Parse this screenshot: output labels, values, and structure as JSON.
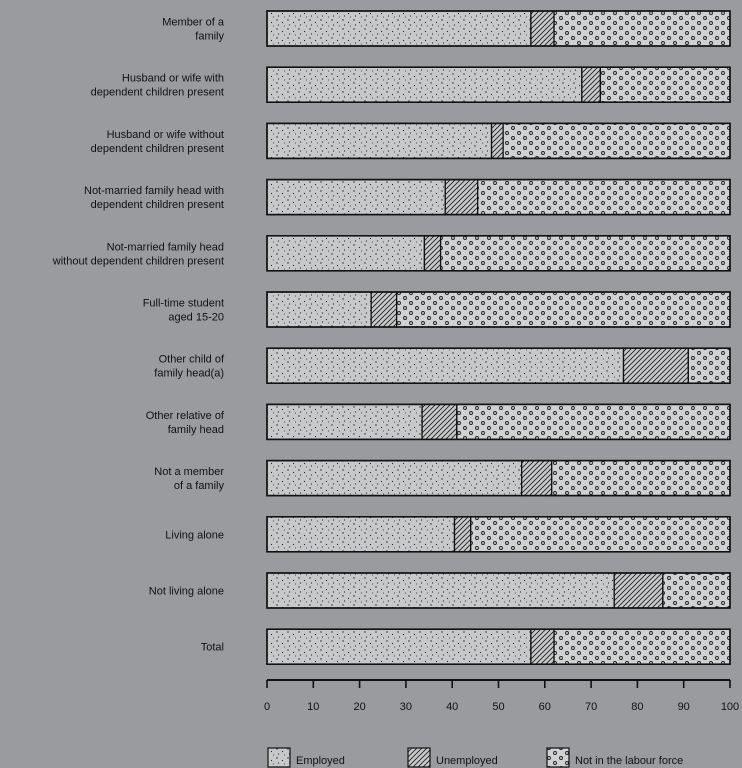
{
  "chart_data": {
    "type": "bar",
    "orientation": "horizontal",
    "stacked": true,
    "categories": [
      [
        "Member of a",
        "family"
      ],
      [
        "Husband or wife with",
        "dependent children present"
      ],
      [
        "Husband or wife without",
        "dependent children present"
      ],
      [
        "Not-married family head with",
        "dependent children present"
      ],
      [
        "Not-married family head",
        "without dependent children present"
      ],
      [
        "Full-time student",
        "aged 15-20"
      ],
      [
        "Other child of",
        "family head(a)"
      ],
      [
        "Other relative of",
        "family head"
      ],
      [
        "Not a member",
        "of a family"
      ],
      [
        "Living alone"
      ],
      [
        "Not living alone"
      ],
      [
        "Total"
      ]
    ],
    "series": [
      {
        "name": "Employed",
        "values": [
          57,
          68,
          48.5,
          38.5,
          34,
          22.5,
          77,
          33.5,
          55,
          40.5,
          75,
          57
        ]
      },
      {
        "name": "Unemployed",
        "values": [
          5,
          4,
          2.5,
          7,
          3.5,
          5.5,
          14,
          7.5,
          6.5,
          3.5,
          10.5,
          5
        ]
      },
      {
        "name": "Not in the labour force",
        "values": [
          38,
          28,
          49,
          54.5,
          62.5,
          72,
          9,
          59,
          38.5,
          56,
          14.5,
          38
        ]
      }
    ],
    "xlim": [
      0,
      100
    ],
    "xticks": [
      0,
      10,
      20,
      30,
      40,
      50,
      60,
      70,
      80,
      90,
      100
    ],
    "legend": {
      "position": "bottom"
    }
  }
}
